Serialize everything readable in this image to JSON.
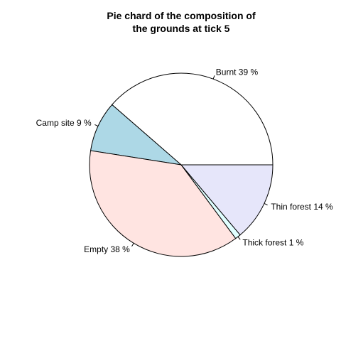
{
  "chart_data": {
    "type": "pie",
    "title_lines": [
      "Pie chard of the composition of",
      "the grounds at tick 5"
    ],
    "slices": [
      {
        "label": "Burnt 39 %",
        "category": "Burnt",
        "percent": 39,
        "color": "#ffffff"
      },
      {
        "label": "Camp site 9 %",
        "category": "Camp site",
        "percent": 9,
        "color": "#add8e6"
      },
      {
        "label": "Empty 38 %",
        "category": "Empty",
        "percent": 38,
        "color": "#ffe4e1"
      },
      {
        "label": "Thick forest 1 %",
        "category": "Thick forest",
        "percent": 1,
        "color": "#e0ffff"
      },
      {
        "label": "Thin forest 14 %",
        "category": "Thin forest",
        "percent": 14,
        "color": "#e6e6fa"
      }
    ],
    "start_angle_deg": 0,
    "direction": "counterclockwise"
  }
}
